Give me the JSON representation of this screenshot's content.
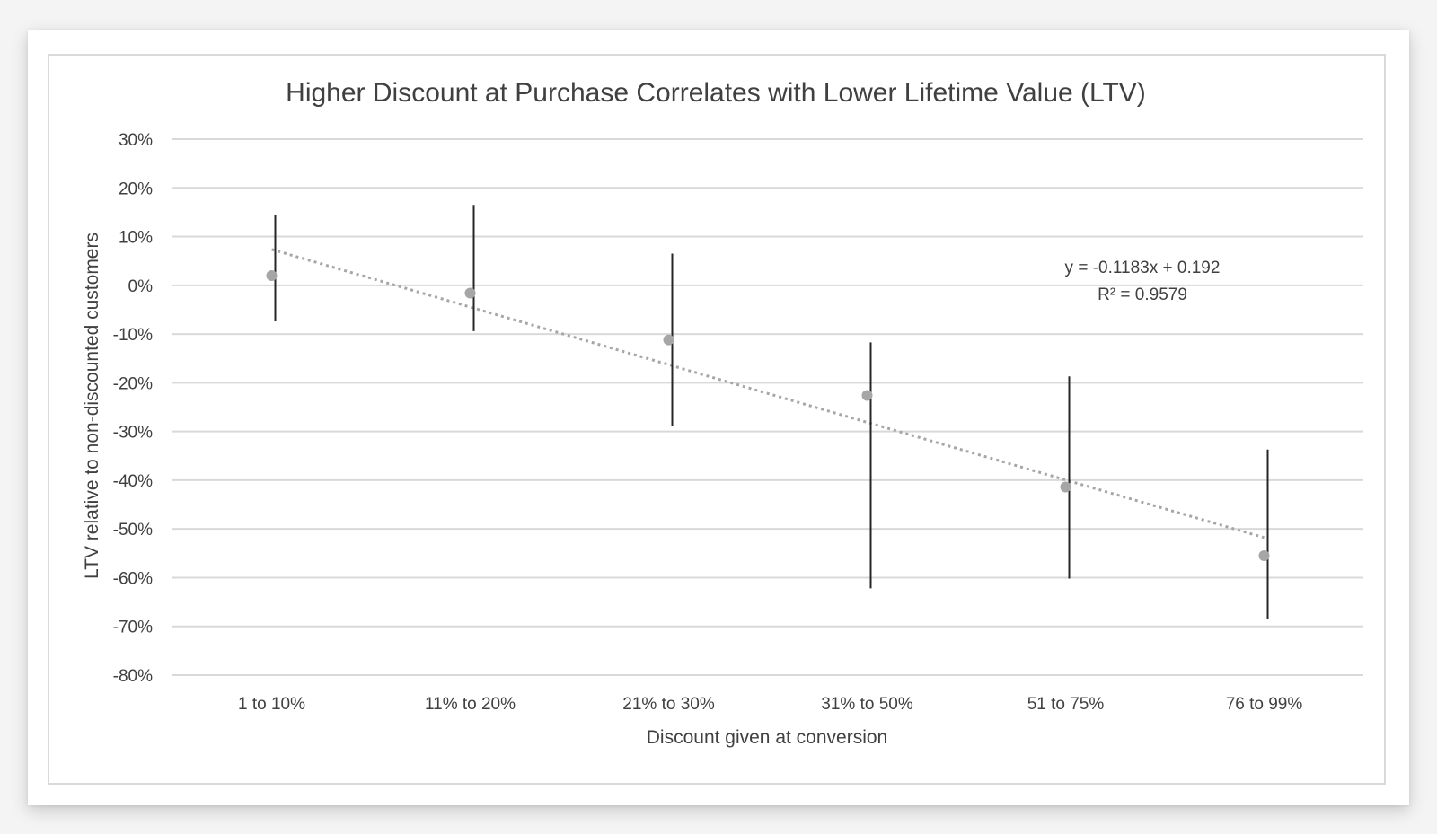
{
  "chart_data": {
    "type": "scatter",
    "title": "Higher Discount at Purchase Correlates with Lower Lifetime Value (LTV)",
    "xlabel": "Discount given at conversion",
    "ylabel": "LTV relative to non-discounted customers",
    "categories": [
      "1 to 10%",
      "11% to 20%",
      "21% to 30%",
      "31% to 50%",
      "51 to 75%",
      "76 to 99%"
    ],
    "values": [
      0.02,
      -0.016,
      -0.112,
      -0.226,
      -0.414,
      -0.555
    ],
    "error_bars": [
      {
        "low": -0.074,
        "high": 0.145
      },
      {
        "low": -0.094,
        "high": 0.165
      },
      {
        "low": -0.288,
        "high": 0.065
      },
      {
        "low": -0.622,
        "high": -0.117
      },
      {
        "low": -0.602,
        "high": -0.187
      },
      {
        "low": -0.685,
        "high": -0.337
      }
    ],
    "trendline": {
      "type": "linear",
      "slope": -0.1183,
      "intercept": 0.192,
      "style": "dotted"
    },
    "annotations": [
      "y = -0.1183x + 0.192",
      "R² = 0.9579"
    ],
    "ylim": [
      -0.8,
      0.3
    ],
    "yticks": [
      0.3,
      0.2,
      0.1,
      0,
      -0.1,
      -0.2,
      -0.3,
      -0.4,
      -0.5,
      -0.6,
      -0.7,
      -0.8
    ],
    "ytick_labels": [
      "30%",
      "20%",
      "10%",
      "0%",
      "-10%",
      "-20%",
      "-30%",
      "-40%",
      "-50%",
      "-60%",
      "-70%",
      "-80%"
    ],
    "grid": true,
    "legend": "none",
    "colors": {
      "marker": "#a6a6a6",
      "error_bar": "#262626",
      "trendline": "#a6a6a6",
      "grid": "#d9d9d9",
      "text": "#404040"
    }
  }
}
